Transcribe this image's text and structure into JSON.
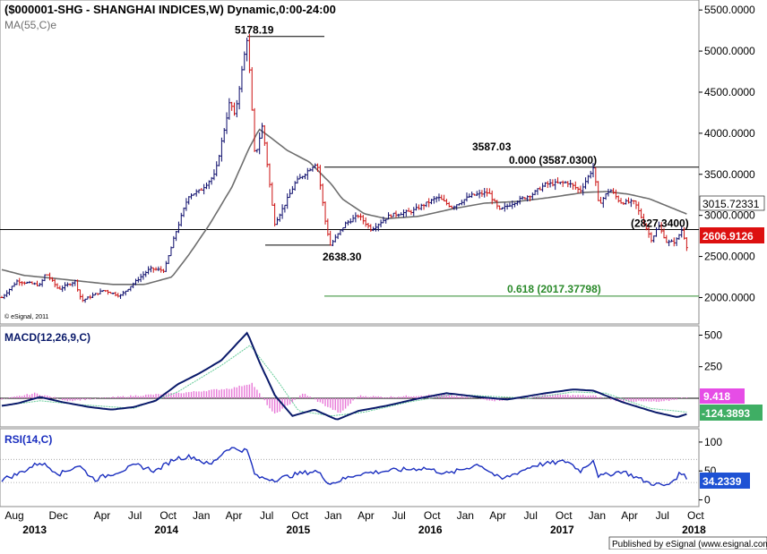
{
  "header": {
    "title": "($000001-SHG - SHANGHAI INDICES,W) Dynamic,0:00-24:00",
    "ma_label": "MA(55,C)e",
    "copyright": "© eSignal, 2011"
  },
  "footer": {
    "published": "Published by eSignal (www.esignal.com)"
  },
  "colors": {
    "up_bar": "#0a0a6a",
    "down_bar": "#cc1111",
    "ma_line": "#6e6e6e",
    "macd_line": "#0a1a6a",
    "signal_line": "#66cc99",
    "histogram": "#e87ad8",
    "rsi_line": "#1a2ebf",
    "fib_line": "#2a8a2a",
    "label_red": "#dd1010",
    "label_blue": "#1e52d4",
    "label_magenta": "#e64de6",
    "label_green": "#3fae64"
  },
  "chart_data": [
    {
      "type": "candlestick",
      "panel": "price",
      "ylim": [
        1700,
        5600
      ],
      "y_ticks": [
        "5500.0000",
        "5000.0000",
        "4500.0000",
        "4000.0000",
        "3500.0000",
        "3000.0000",
        "2500.0000",
        "2000.0000"
      ],
      "y_tick_values": [
        5500,
        5000,
        4500,
        4000,
        3500,
        3000,
        2500,
        2000
      ],
      "x_range": [
        "2013-08-01",
        "2018-10-20"
      ],
      "price_anchors": [
        [
          "2013-08-01",
          2000
        ],
        [
          "2013-09-12",
          2200
        ],
        [
          "2013-11-15",
          2150
        ],
        [
          "2013-12-01",
          2300
        ],
        [
          "2014-01-05",
          2100
        ],
        [
          "2014-02-20",
          2200
        ],
        [
          "2014-03-10",
          1960
        ],
        [
          "2014-05-10",
          2090
        ],
        [
          "2014-06-25",
          2020
        ],
        [
          "2014-08-15",
          2230
        ],
        [
          "2014-09-15",
          2350
        ],
        [
          "2014-10-25",
          2330
        ],
        [
          "2014-11-25",
          2780
        ],
        [
          "2014-12-31",
          3240
        ],
        [
          "2015-02-01",
          3300
        ],
        [
          "2015-03-15",
          3500
        ],
        [
          "2015-04-25",
          4400
        ],
        [
          "2015-05-08",
          4200
        ],
        [
          "2015-06-12",
          5178.19
        ],
        [
          "2015-07-03",
          3700
        ],
        [
          "2015-07-24",
          4100
        ],
        [
          "2015-08-26",
          2900
        ],
        [
          "2015-09-20",
          3100
        ],
        [
          "2015-10-23",
          3400
        ],
        [
          "2015-12-22",
          3650
        ],
        [
          "2016-01-15",
          2900
        ],
        [
          "2016-01-28",
          2638.3
        ],
        [
          "2016-03-10",
          2900
        ],
        [
          "2016-04-15",
          3000
        ],
        [
          "2016-05-20",
          2830
        ],
        [
          "2016-07-10",
          3000
        ],
        [
          "2016-09-10",
          3050
        ],
        [
          "2016-11-20",
          3220
        ],
        [
          "2016-12-30",
          3100
        ],
        [
          "2017-02-20",
          3240
        ],
        [
          "2017-04-10",
          3280
        ],
        [
          "2017-05-10",
          3060
        ],
        [
          "2017-06-20",
          3160
        ],
        [
          "2017-08-10",
          3260
        ],
        [
          "2017-09-15",
          3380
        ],
        [
          "2017-11-15",
          3400
        ],
        [
          "2017-12-20",
          3300
        ],
        [
          "2018-01-26",
          3587.03
        ],
        [
          "2018-02-09",
          3130
        ],
        [
          "2018-03-12",
          3320
        ],
        [
          "2018-04-10",
          3160
        ],
        [
          "2018-05-20",
          3160
        ],
        [
          "2018-06-20",
          2850
        ],
        [
          "2018-07-06",
          2700
        ],
        [
          "2018-07-25",
          2880
        ],
        [
          "2018-08-17",
          2670
        ],
        [
          "2018-09-10",
          2680
        ],
        [
          "2018-09-28",
          2830
        ],
        [
          "2018-10-12",
          2606.91
        ]
      ],
      "ma55_anchors": [
        [
          "2013-08-01",
          2340
        ],
        [
          "2013-10-01",
          2270
        ],
        [
          "2014-01-01",
          2230
        ],
        [
          "2014-06-01",
          2160
        ],
        [
          "2014-09-01",
          2160
        ],
        [
          "2014-11-15",
          2250
        ],
        [
          "2015-01-01",
          2520
        ],
        [
          "2015-03-01",
          2900
        ],
        [
          "2015-05-01",
          3350
        ],
        [
          "2015-06-15",
          3800
        ],
        [
          "2015-07-15",
          4050
        ],
        [
          "2015-08-15",
          3950
        ],
        [
          "2015-10-01",
          3790
        ],
        [
          "2015-12-01",
          3650
        ],
        [
          "2016-01-31",
          3380
        ],
        [
          "2016-03-01",
          3200
        ],
        [
          "2016-05-01",
          3020
        ],
        [
          "2016-07-01",
          2960
        ],
        [
          "2016-10-01",
          2990
        ],
        [
          "2017-01-01",
          3080
        ],
        [
          "2017-04-01",
          3150
        ],
        [
          "2017-07-01",
          3170
        ],
        [
          "2017-10-01",
          3220
        ],
        [
          "2018-01-01",
          3280
        ],
        [
          "2018-03-01",
          3290
        ],
        [
          "2018-05-01",
          3260
        ],
        [
          "2018-07-01",
          3200
        ],
        [
          "2018-10-12",
          3015.72
        ]
      ],
      "annotations": {
        "high_label": "5178.19",
        "low_label": "2638.30",
        "peak_label": "3587.03",
        "fib_0_label": "0.000 (3587.0300)",
        "fib_618_label": "0.618 (2017.37798)",
        "horizontal_label": "(2827.3400)"
      },
      "levels": {
        "high": 5178.19,
        "low": 2638.3,
        "peak": 3587.03,
        "fib_618": 2017.37798,
        "horizontal": 2827.34
      },
      "last_values": {
        "ma": "3015.72331",
        "price": "2606.9126"
      }
    },
    {
      "type": "line",
      "panel": "macd",
      "title": "MACD(12,26,9,C)",
      "ylim": [
        -220,
        560
      ],
      "y_ticks": [
        "500",
        "250"
      ],
      "y_tick_values": [
        500,
        250
      ],
      "macd_anchors": [
        [
          "2013-08-01",
          -60
        ],
        [
          "2013-09-15",
          -40
        ],
        [
          "2013-11-15",
          10
        ],
        [
          "2014-01-15",
          -30
        ],
        [
          "2014-04-01",
          -70
        ],
        [
          "2014-06-01",
          -90
        ],
        [
          "2014-08-01",
          -70
        ],
        [
          "2014-10-01",
          -20
        ],
        [
          "2014-12-01",
          110
        ],
        [
          "2015-02-01",
          200
        ],
        [
          "2015-04-01",
          300
        ],
        [
          "2015-06-12",
          520
        ],
        [
          "2015-07-15",
          290
        ],
        [
          "2015-08-28",
          20
        ],
        [
          "2015-10-15",
          -140
        ],
        [
          "2015-12-15",
          -90
        ],
        [
          "2016-02-15",
          -170
        ],
        [
          "2016-04-15",
          -100
        ],
        [
          "2016-07-01",
          -60
        ],
        [
          "2016-10-01",
          0
        ],
        [
          "2016-12-15",
          40
        ],
        [
          "2017-03-15",
          10
        ],
        [
          "2017-06-01",
          -10
        ],
        [
          "2017-09-15",
          40
        ],
        [
          "2017-12-01",
          70
        ],
        [
          "2018-01-26",
          60
        ],
        [
          "2018-04-15",
          -30
        ],
        [
          "2018-07-15",
          -110
        ],
        [
          "2018-09-15",
          -150
        ],
        [
          "2018-10-12",
          -124.39
        ]
      ],
      "signal_anchors": [
        [
          "2013-08-01",
          -60
        ],
        [
          "2013-11-15",
          -20
        ],
        [
          "2014-03-01",
          -50
        ],
        [
          "2014-08-01",
          -80
        ],
        [
          "2014-12-01",
          50
        ],
        [
          "2015-04-01",
          260
        ],
        [
          "2015-06-20",
          420
        ],
        [
          "2015-09-01",
          150
        ],
        [
          "2015-11-01",
          -100
        ],
        [
          "2016-02-01",
          -140
        ],
        [
          "2016-05-01",
          -110
        ],
        [
          "2016-09-01",
          -30
        ],
        [
          "2017-01-01",
          30
        ],
        [
          "2017-08-01",
          0
        ],
        [
          "2017-12-01",
          50
        ],
        [
          "2018-03-01",
          40
        ],
        [
          "2018-07-01",
          -80
        ],
        [
          "2018-10-12",
          -110
        ]
      ],
      "hist_anchors": [
        [
          "2013-08-01",
          -10
        ],
        [
          "2013-11-01",
          40
        ],
        [
          "2014-02-01",
          -20
        ],
        [
          "2014-08-01",
          20
        ],
        [
          "2014-12-01",
          40
        ],
        [
          "2015-05-01",
          80
        ],
        [
          "2015-06-25",
          120
        ],
        [
          "2015-07-25",
          0
        ],
        [
          "2015-08-25",
          -130
        ],
        [
          "2015-10-01",
          -60
        ],
        [
          "2015-11-15",
          40
        ],
        [
          "2016-01-15",
          -60
        ],
        [
          "2016-02-25",
          -120
        ],
        [
          "2016-04-15",
          20
        ],
        [
          "2016-07-01",
          10
        ],
        [
          "2016-12-01",
          30
        ],
        [
          "2017-05-01",
          -20
        ],
        [
          "2017-10-01",
          30
        ],
        [
          "2018-01-26",
          20
        ],
        [
          "2018-04-01",
          -20
        ],
        [
          "2018-08-01",
          -30
        ],
        [
          "2018-10-12",
          9.418
        ]
      ],
      "last_values": {
        "hist": "9.418",
        "macd": "-124.3893"
      }
    },
    {
      "type": "line",
      "panel": "rsi",
      "title": "RSI(14,C)",
      "ylim": [
        -10,
        120
      ],
      "y_ticks": [
        "100",
        "50",
        "0"
      ],
      "y_tick_values": [
        100,
        50,
        0
      ],
      "guide_levels": [
        70,
        30
      ],
      "rsi_anchors": [
        [
          "2013-08-01",
          35
        ],
        [
          "2013-09-15",
          45
        ],
        [
          "2013-11-15",
          65
        ],
        [
          "2014-01-10",
          45
        ],
        [
          "2014-03-01",
          60
        ],
        [
          "2014-04-15",
          35
        ],
        [
          "2014-06-15",
          48
        ],
        [
          "2014-08-10",
          60
        ],
        [
          "2014-10-01",
          50
        ],
        [
          "2014-11-25",
          72
        ],
        [
          "2015-01-10",
          75
        ],
        [
          "2015-03-01",
          60
        ],
        [
          "2015-04-20",
          90
        ],
        [
          "2015-06-12",
          85
        ],
        [
          "2015-07-05",
          40
        ],
        [
          "2015-08-28",
          35
        ],
        [
          "2015-10-30",
          45
        ],
        [
          "2015-12-20",
          50
        ],
        [
          "2016-01-28",
          28
        ],
        [
          "2016-04-15",
          45
        ],
        [
          "2016-07-01",
          50
        ],
        [
          "2016-10-15",
          55
        ],
        [
          "2016-12-20",
          45
        ],
        [
          "2017-03-15",
          62
        ],
        [
          "2017-05-15",
          35
        ],
        [
          "2017-08-15",
          60
        ],
        [
          "2017-11-15",
          67
        ],
        [
          "2017-12-20",
          50
        ],
        [
          "2018-01-26",
          70
        ],
        [
          "2018-02-09",
          40
        ],
        [
          "2018-04-15",
          50
        ],
        [
          "2018-06-25",
          30
        ],
        [
          "2018-08-17",
          24
        ],
        [
          "2018-09-28",
          48
        ],
        [
          "2018-10-12",
          34.23
        ]
      ],
      "last_values": {
        "rsi": "34.2339"
      }
    }
  ],
  "x_axis": {
    "months": [
      {
        "label": "Aug",
        "date": "2013-08-01"
      },
      {
        "label": "Dec",
        "date": "2013-12-01"
      },
      {
        "label": "Apr",
        "date": "2014-04-01"
      },
      {
        "label": "Jul",
        "date": "2014-07-01"
      },
      {
        "label": "Oct",
        "date": "2014-10-01"
      },
      {
        "label": "Jan",
        "date": "2015-01-01"
      },
      {
        "label": "Apr",
        "date": "2015-04-01"
      },
      {
        "label": "Jul",
        "date": "2015-07-01"
      },
      {
        "label": "Oct",
        "date": "2015-10-01"
      },
      {
        "label": "Jan",
        "date": "2016-01-01"
      },
      {
        "label": "Apr",
        "date": "2016-04-01"
      },
      {
        "label": "Jul",
        "date": "2016-07-01"
      },
      {
        "label": "Oct",
        "date": "2016-10-01"
      },
      {
        "label": "Jan",
        "date": "2017-01-01"
      },
      {
        "label": "Apr",
        "date": "2017-04-01"
      },
      {
        "label": "Jul",
        "date": "2017-07-01"
      },
      {
        "label": "Oct",
        "date": "2017-10-01"
      },
      {
        "label": "Jan",
        "date": "2018-01-01"
      },
      {
        "label": "Apr",
        "date": "2018-04-01"
      },
      {
        "label": "Jul",
        "date": "2018-07-01"
      },
      {
        "label": "Oct",
        "date": "2018-10-01"
      }
    ],
    "years": [
      {
        "label": "2013",
        "date": "2014-01-01"
      },
      {
        "label": "2014",
        "date": "2015-01-01"
      },
      {
        "label": "2015",
        "date": "2016-01-01"
      },
      {
        "label": "2016",
        "date": "2017-01-01"
      },
      {
        "label": "2017",
        "date": "2018-01-01"
      },
      {
        "label": "2018",
        "date": "2019-01-01"
      }
    ]
  }
}
